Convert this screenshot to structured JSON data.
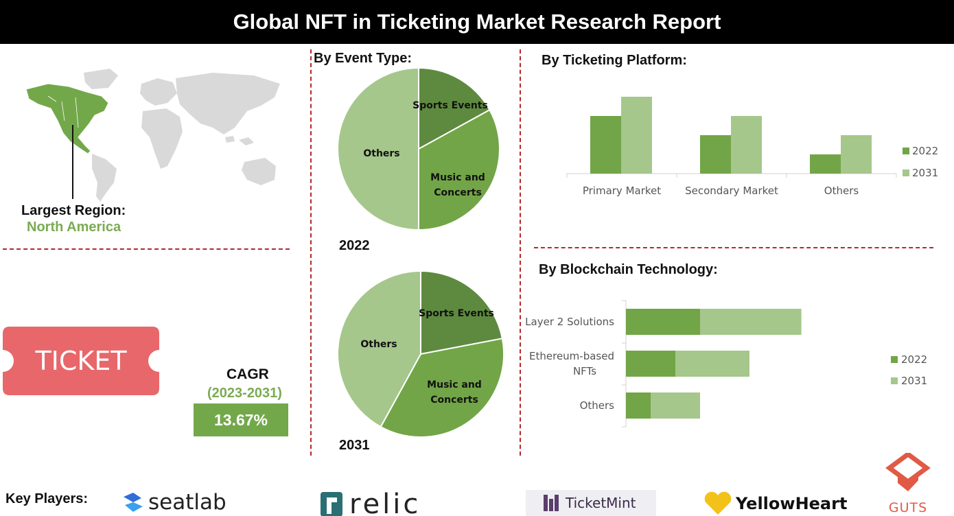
{
  "header": {
    "title": "Global NFT in Ticketing Market Research Report"
  },
  "region": {
    "label": "Largest Region:",
    "value": "North America"
  },
  "ticket": {
    "label": "TICKET"
  },
  "cagr": {
    "label": "CAGR",
    "period": "(2023-2031)",
    "value": "13.67%"
  },
  "key_players": {
    "label": "Key Players:",
    "logos": [
      "seatlab",
      "relic",
      "TicketMint",
      "YellowHeart",
      "GUTS"
    ]
  },
  "colors": {
    "dark_green": "#5e8a3f",
    "mid_green": "#72a547",
    "light_green": "#a5c78b",
    "divider_red": "#b3282d",
    "ticket_red": "#e8676a",
    "map_gray": "#d9d9d9"
  },
  "chart_data": [
    {
      "type": "pie",
      "title": "By Event Type:",
      "year_label": "2022",
      "slices": [
        {
          "label": "Sports Events",
          "value": 17
        },
        {
          "label": "Music and Concerts",
          "value": 33
        },
        {
          "label": "Others",
          "value": 50
        }
      ]
    },
    {
      "type": "pie",
      "year_label": "2031",
      "slices": [
        {
          "label": "Sports Events",
          "value": 22
        },
        {
          "label": "Music and Concerts",
          "value": 36
        },
        {
          "label": "Others",
          "value": 42
        }
      ]
    },
    {
      "type": "bar",
      "title": "By Ticketing Platform:",
      "categories": [
        "Primary Market",
        "Secondary Market",
        "Others"
      ],
      "series": [
        {
          "name": "2022",
          "values": [
            3.0,
            2.0,
            1.0
          ]
        },
        {
          "name": "2031",
          "values": [
            4.0,
            3.0,
            2.0
          ]
        }
      ],
      "legend": "right"
    },
    {
      "type": "bar",
      "orientation": "horizontal",
      "stacked": true,
      "title": "By Blockchain Technology:",
      "categories": [
        "Layer 2 Solutions",
        "Ethereum-based NFTs",
        "Others"
      ],
      "series": [
        {
          "name": "2022",
          "values": [
            3.0,
            2.0,
            1.0
          ]
        },
        {
          "name": "2031",
          "values": [
            4.1,
            3.0,
            2.0
          ]
        }
      ],
      "legend": "right"
    }
  ]
}
